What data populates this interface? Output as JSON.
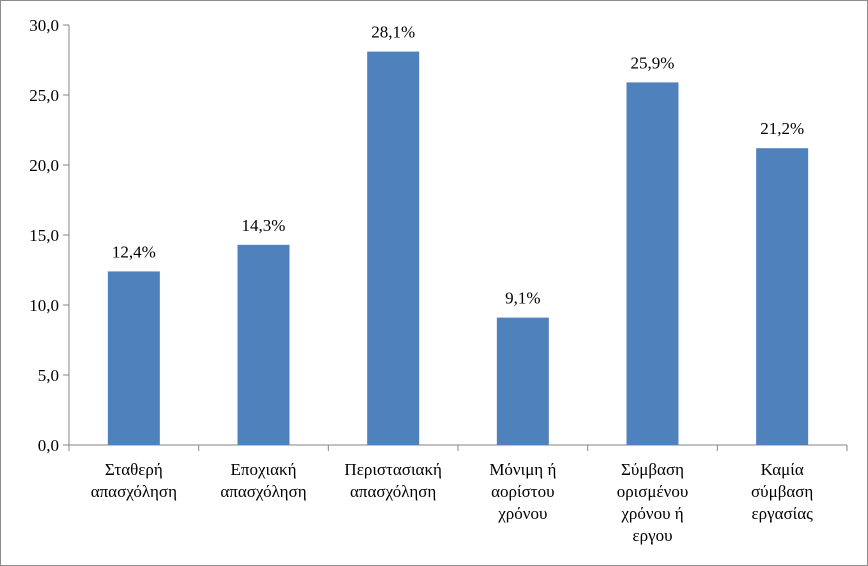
{
  "chart_data": {
    "type": "bar",
    "categories": [
      [
        "Σταθερή",
        "απασχόληση"
      ],
      [
        "Εποχιακή",
        "απασχόληση"
      ],
      [
        "Περιστασιακή",
        "απασχόληση"
      ],
      [
        "Μόνιμη ή",
        "αορίστου",
        "χρόνου"
      ],
      [
        "Σύμβαση",
        "ορισμένου",
        "χρόνου ή",
        "εργου"
      ],
      [
        "Καμία",
        "σύμβαση",
        "εργασίας"
      ]
    ],
    "values": [
      12.4,
      14.3,
      28.1,
      9.1,
      25.9,
      21.2
    ],
    "data_labels": [
      "12,4%",
      "14,3%",
      "28,1%",
      "9,1%",
      "25,9%",
      "21,2%"
    ],
    "y_ticks": [
      "0,0",
      "5,0",
      "10,0",
      "15,0",
      "20,0",
      "25,0",
      "30,0"
    ],
    "ylim": [
      0,
      30
    ],
    "grid": false,
    "legend": "none",
    "bar_color": "#4f81bd",
    "axis_color": "#868686"
  }
}
